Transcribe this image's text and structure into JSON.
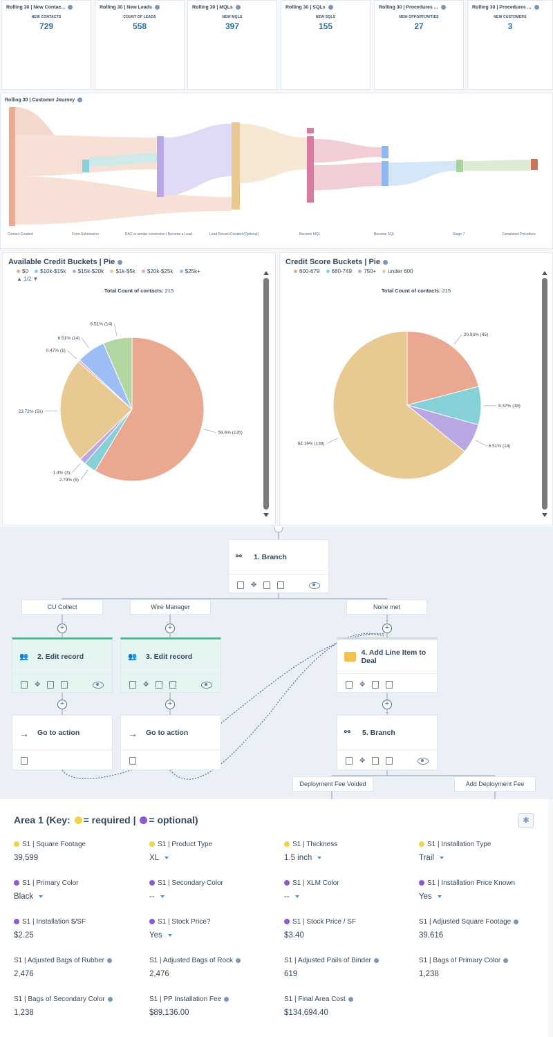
{
  "kpis": [
    {
      "title": "Rolling 30 | New Contac...",
      "label": "NEW CONTACTS",
      "value": "729"
    },
    {
      "title": "Rolling 30 | New Leads",
      "label": "COUNT OF LEADS",
      "value": "558"
    },
    {
      "title": "Rolling 30 | MQLs",
      "label": "NEW MQLS",
      "value": "397"
    },
    {
      "title": "Rolling 30 | SQLs",
      "label": "NEW SQLS",
      "value": "155"
    },
    {
      "title": "Rolling 30 | Procedures ...",
      "label": "NEW OPPORTUNITIES",
      "value": "27"
    },
    {
      "title": "Rolling 30 | Procedures ...",
      "label": "NEW CUSTOMERS",
      "value": "3"
    }
  ],
  "journey": {
    "title": "Rolling 30 | Customer Journey",
    "stages": [
      "Contact Created",
      "Form Submission",
      "RAC or similar conversion | Become a Lead",
      "Lead Record Created (Optional)",
      "Become MQL",
      "Become SQL",
      "Stage 7",
      "Completed Procedure"
    ]
  },
  "pie_left": {
    "title": "Available Credit Buckets | Pie",
    "legend": [
      "$0",
      "$10k-$15k",
      "$15k-$20k",
      "$1k-$5k",
      "$20k-$25k",
      "$25k+"
    ],
    "pager": "1/2",
    "total_label": "Total Count of contacts:",
    "total_value": "215"
  },
  "pie_right": {
    "title": "Credit Score Buckets | Pie",
    "legend": [
      "600-679",
      "680-749",
      "750+",
      "under 600"
    ],
    "total_label": "Total Count of contacts:",
    "total_value": "215"
  },
  "chart_data": [
    {
      "type": "pie",
      "title": "Available Credit Buckets | Pie",
      "slices": [
        {
          "label": "$0",
          "percent": 58.6,
          "count": 126,
          "color": "#eaa891"
        },
        {
          "label": "$10k-$15k",
          "percent": 2.79,
          "count": 6,
          "color": "#86d1d8"
        },
        {
          "label": "$15k-$20k",
          "percent": 1.4,
          "count": 3,
          "color": "#b8a7e3"
        },
        {
          "label": "$1k-$5k",
          "percent": 23.72,
          "count": 51,
          "color": "#e8c992"
        },
        {
          "label": "$20k-$25k",
          "percent": 0.47,
          "count": 1,
          "color": "#e8a5b4"
        },
        {
          "label": "$25k+",
          "percent": 6.51,
          "count": 14,
          "color": "#9dbef5"
        },
        {
          "label": "",
          "percent": 6.51,
          "count": 14,
          "color": "#b2d6a1"
        }
      ]
    },
    {
      "type": "pie",
      "title": "Credit Score Buckets | Pie",
      "slices": [
        {
          "label": "600-679",
          "percent": 20.93,
          "count": 45,
          "color": "#eaa891"
        },
        {
          "label": "680-749",
          "percent": 8.37,
          "count": 18,
          "color": "#86d1d8"
        },
        {
          "label": "750+",
          "percent": 6.51,
          "count": 14,
          "color": "#b8a7e3"
        },
        {
          "label": "under 600",
          "percent": 64.19,
          "count": 138,
          "color": "#e8c992"
        }
      ]
    }
  ],
  "workflow": {
    "branch1": "1. Branch",
    "labels": [
      "CU Collect",
      "Wire Manager",
      "None met"
    ],
    "edit2": "2. Edit record",
    "edit3": "3. Edit record",
    "add4": "4. Add Line Item to Deal",
    "goto": "Go to action",
    "branch5": "5. Branch",
    "sub_labels": [
      "Deployment Fee Voided",
      "Add Deployment Fee"
    ]
  },
  "area": {
    "title_prefix": "Area 1 (Key:",
    "required_text": "= required |",
    "optional_text": "= optional)",
    "fields": [
      {
        "label": "S1 | Square Footage",
        "value": "39,599",
        "kind": "required",
        "dropdown": false
      },
      {
        "label": "S1 | Product Type",
        "value": "XL",
        "kind": "required",
        "dropdown": true
      },
      {
        "label": "S1 | Thickness",
        "value": "1.5 inch",
        "kind": "required",
        "dropdown": true
      },
      {
        "label": "S1 | Installation Type",
        "value": "Trail",
        "kind": "required",
        "dropdown": true
      },
      {
        "label": "S1 | Primary Color",
        "value": "Black",
        "kind": "optional",
        "dropdown": true
      },
      {
        "label": "S1 | Secondary Color",
        "value": "--",
        "kind": "optional",
        "dropdown": true
      },
      {
        "label": "S1 | XLM Color",
        "value": "--",
        "kind": "optional",
        "dropdown": true
      },
      {
        "label": "S1 | Installation Price Known",
        "value": "Yes",
        "kind": "optional",
        "dropdown": true
      },
      {
        "label": "S1 | Installation $/SF",
        "value": "$2.25",
        "kind": "optional",
        "dropdown": false
      },
      {
        "label": "S1 | Stock Price?",
        "value": "Yes",
        "kind": "optional",
        "dropdown": true
      },
      {
        "label": "S1 | Stock Price / SF",
        "value": "$3.40",
        "kind": "optional",
        "dropdown": false
      },
      {
        "label": "S1 | Adjusted Square Footage",
        "value": "39,616",
        "kind": "calc",
        "dropdown": false
      },
      {
        "label": "S1 | Adjusted Bags of Rubber",
        "value": "2,476",
        "kind": "calc",
        "dropdown": false
      },
      {
        "label": "S1 | Adjusted Bags of Rock",
        "value": "2,476",
        "kind": "calc",
        "dropdown": false
      },
      {
        "label": "S1 | Adjusted Pails of Binder",
        "value": "619",
        "kind": "calc",
        "dropdown": false
      },
      {
        "label": "S1 | Bags of Primary Color",
        "value": "1,238",
        "kind": "calc",
        "dropdown": false
      },
      {
        "label": "S1 | Bags of Secondary Color",
        "value": "1,238",
        "kind": "calc",
        "dropdown": false
      },
      {
        "label": "S1 | PP Installation Fee",
        "value": "$89,136.00",
        "kind": "calc",
        "dropdown": false
      },
      {
        "label": "S1 | Final Area Cost",
        "value": "$134,694.40",
        "kind": "calc",
        "dropdown": false
      }
    ]
  }
}
